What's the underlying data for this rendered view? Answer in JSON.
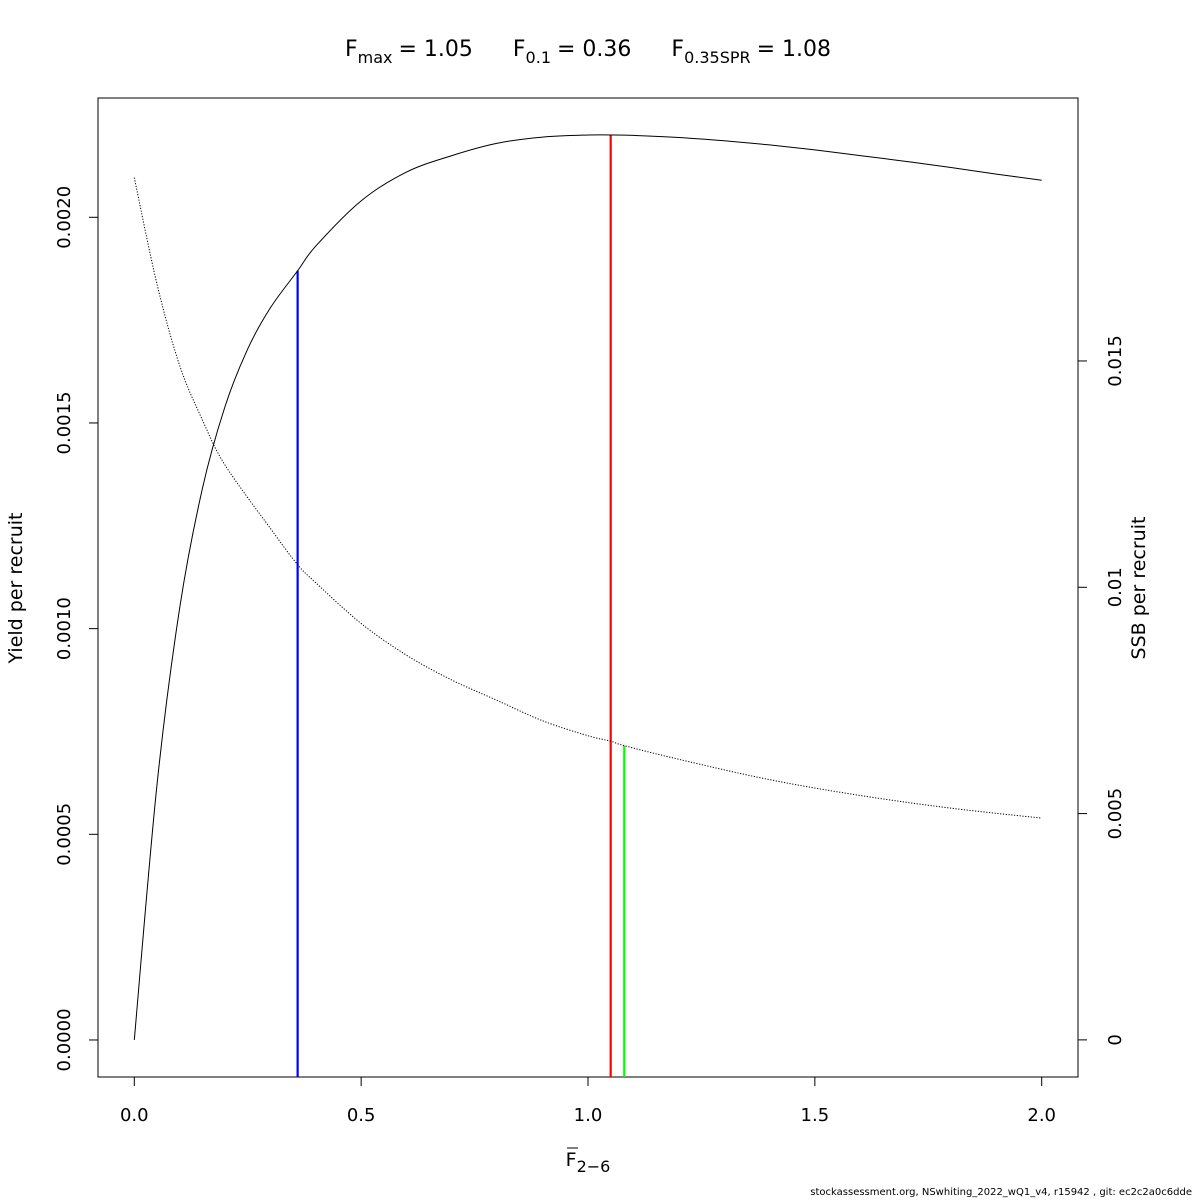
{
  "title": {
    "fmax_symbol": "F",
    "fmax_sub": "max",
    "fmax_value": "= 1.05",
    "f01_symbol": "F",
    "f01_sub": "0.1",
    "f01_value": "= 0.36",
    "fspr_symbol": "F",
    "fspr_sub": "0.35SPR",
    "fspr_value": "= 1.08"
  },
  "footer": "stockassessment.org, NSwhiting_2022_wQ1_v4, r15942 , git: ec2c2a0c6dde",
  "chart_data": {
    "type": "line",
    "xlabel": "F",
    "xlabel_sub": "2−6",
    "ylabel": "Yield per recruit",
    "y2label": "SSB per recruit",
    "xlim": [
      -0.08,
      2.08
    ],
    "ylim": [
      -9e-05,
      0.00229
    ],
    "y2lim": [
      -0.00082,
      0.02081
    ],
    "x_ticks": [
      0,
      0.5,
      1,
      1.5,
      2
    ],
    "x_tick_labels": [
      "0.0",
      "0.5",
      "1.0",
      "1.5",
      "2.0"
    ],
    "y_ticks": [
      0,
      0.0005,
      0.001,
      0.0015,
      0.002
    ],
    "y_tick_labels": [
      "0.0000",
      "0.0005",
      "0.0010",
      "0.0015",
      "0.0020"
    ],
    "y2_ticks": [
      0,
      0.005,
      0.01,
      0.015
    ],
    "y2_tick_labels": [
      "0",
      "0.005",
      "0.01",
      "0.015"
    ],
    "grid": false,
    "series": [
      {
        "name": "Yield per recruit",
        "axis": "left",
        "style": "solid",
        "color": "#000000",
        "x": [
          0,
          0.05,
          0.1,
          0.15,
          0.2,
          0.25,
          0.3,
          0.36,
          0.4,
          0.5,
          0.6,
          0.7,
          0.8,
          0.9,
          1.0,
          1.05,
          1.1,
          1.2,
          1.3,
          1.4,
          1.5,
          1.6,
          1.7,
          1.8,
          1.9,
          2.0
        ],
        "y": [
          0,
          0.00062,
          0.00105,
          0.00134,
          0.00154,
          0.00168,
          0.00178,
          0.00187,
          0.00193,
          0.00204,
          0.00211,
          0.00215,
          0.00218,
          0.002195,
          0.0022,
          0.0022,
          0.002199,
          0.002194,
          0.002186,
          0.002176,
          0.002164,
          0.00215,
          0.002136,
          0.002121,
          0.002105,
          0.00209
        ]
      },
      {
        "name": "SSB per recruit",
        "axis": "right",
        "style": "dotted",
        "color": "#000000",
        "x": [
          0,
          0.05,
          0.1,
          0.15,
          0.2,
          0.3,
          0.36,
          0.4,
          0.5,
          0.6,
          0.7,
          0.8,
          0.9,
          1.0,
          1.05,
          1.08,
          1.2,
          1.4,
          1.6,
          1.8,
          2.0
        ],
        "y": [
          0.01905,
          0.0167,
          0.0149,
          0.0137,
          0.0127,
          0.0113,
          0.0105,
          0.0101,
          0.0092,
          0.0085,
          0.00795,
          0.0075,
          0.00705,
          0.00672,
          0.0066,
          0.0065,
          0.0062,
          0.00575,
          0.0054,
          0.00512,
          0.0049
        ]
      }
    ],
    "reference_lines": [
      {
        "name": "F0.1",
        "x": 0.36,
        "y_top": 0.00187,
        "axis": "left",
        "color": "#0000ff"
      },
      {
        "name": "Fmax",
        "x": 1.05,
        "y_top": 0.0022,
        "axis": "left",
        "color": "#ff0000"
      },
      {
        "name": "F0.35SPR",
        "x": 1.08,
        "y_top": 0.0065,
        "axis": "right",
        "color": "#00ff00"
      }
    ]
  }
}
